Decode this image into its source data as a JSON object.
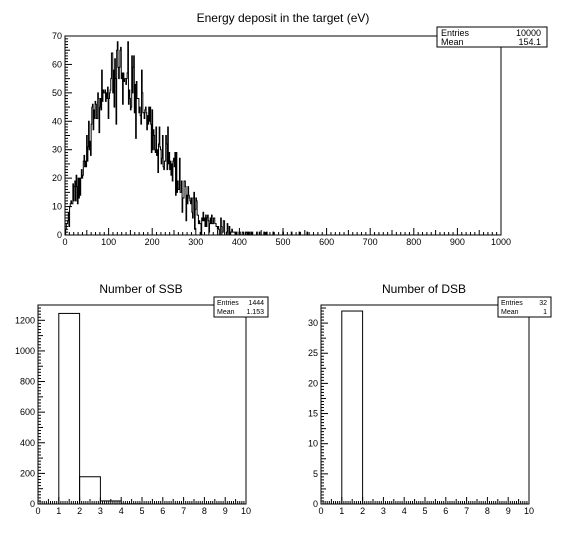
{
  "chart_data": [
    {
      "type": "histogram",
      "title": "Energy deposit in the target (eV)",
      "xlim": [
        0,
        1000
      ],
      "ylim": [
        0,
        70
      ],
      "xticks": [
        0,
        100,
        200,
        300,
        400,
        500,
        600,
        700,
        800,
        900,
        1000
      ],
      "yticks": [
        0,
        10,
        20,
        30,
        40,
        50,
        60,
        70
      ],
      "stats": {
        "entries_label": "Entries",
        "entries": "10000",
        "mean_label": "Mean",
        "mean": "154.1"
      },
      "envelope": {
        "x": [
          0,
          10,
          20,
          30,
          40,
          50,
          60,
          70,
          80,
          90,
          100,
          110,
          120,
          130,
          140,
          150,
          160,
          170,
          180,
          190,
          200,
          210,
          220,
          230,
          240,
          250,
          260,
          270,
          280,
          290,
          300,
          310,
          320,
          330,
          340,
          350,
          360,
          370,
          380,
          390,
          400,
          420,
          440,
          460,
          480,
          500,
          520,
          560,
          600,
          700,
          800,
          1000
        ],
        "y": [
          0,
          8,
          14,
          18,
          26,
          32,
          38,
          43,
          47,
          51,
          54,
          56,
          57,
          57,
          56,
          54,
          51,
          47,
          44,
          41,
          37,
          33,
          30,
          27,
          24,
          21,
          18,
          15,
          12.5,
          10.5,
          8.5,
          7,
          5.5,
          4.5,
          3.5,
          2.8,
          2.2,
          1.8,
          1.4,
          1.1,
          0.9,
          0.6,
          0.4,
          0.3,
          0.2,
          0.15,
          0.1,
          0.05,
          0.03,
          0,
          0,
          0
        ]
      }
    },
    {
      "type": "histogram",
      "title": "Number of SSB",
      "xlim": [
        0,
        10
      ],
      "ylim": [
        0,
        1300
      ],
      "xticks": [
        0,
        1,
        2,
        3,
        4,
        5,
        6,
        7,
        8,
        9,
        10
      ],
      "yticks": [
        0,
        200,
        400,
        600,
        800,
        1000,
        1200
      ],
      "stats": {
        "entries_label": "Entries",
        "entries": "1444",
        "mean_label": "Mean",
        "mean": "1.153"
      },
      "bins": [
        {
          "x0": 1,
          "x1": 2,
          "value": 1245
        },
        {
          "x0": 2,
          "x1": 3,
          "value": 178
        },
        {
          "x0": 3,
          "x1": 4,
          "value": 20
        },
        {
          "x0": 4,
          "x1": 5,
          "value": 1
        }
      ]
    },
    {
      "type": "histogram",
      "title": "Number of DSB",
      "xlim": [
        0,
        10
      ],
      "ylim": [
        0,
        33
      ],
      "xticks": [
        0,
        1,
        2,
        3,
        4,
        5,
        6,
        7,
        8,
        9,
        10
      ],
      "yticks": [
        0,
        5,
        10,
        15,
        20,
        25,
        30
      ],
      "stats": {
        "entries_label": "Entries",
        "entries": "32",
        "mean_label": "Mean",
        "mean": "1"
      },
      "bins": [
        {
          "x0": 1,
          "x1": 2,
          "value": 32
        }
      ]
    }
  ]
}
